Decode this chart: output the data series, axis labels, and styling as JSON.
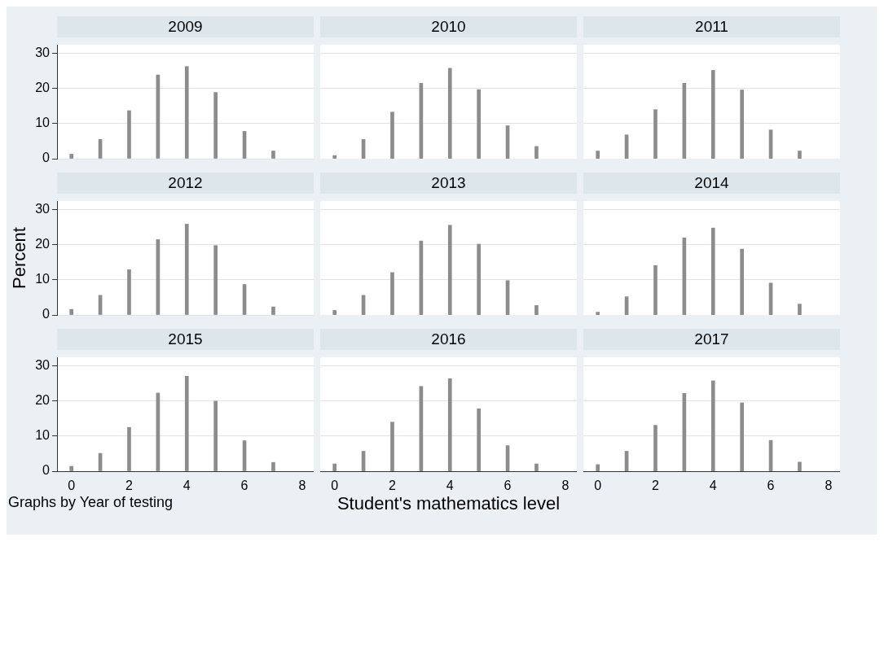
{
  "chart_data": [
    {
      "type": "bar",
      "title": "2009",
      "x": [
        0,
        1,
        2,
        3,
        4,
        5,
        6,
        7
      ],
      "values": [
        1.3,
        5.5,
        13.7,
        23.9,
        26.3,
        18.9,
        7.8,
        2.2
      ],
      "color": "#8c8c8c",
      "xlim": [
        -0.5,
        8.4
      ],
      "ylim": [
        0,
        32.5
      ],
      "yticks": [
        0,
        10,
        20,
        30
      ],
      "grid": "y",
      "tick_labels": "y"
    },
    {
      "type": "bar",
      "title": "2010",
      "x": [
        0,
        1,
        2,
        3,
        4,
        5,
        6,
        7
      ],
      "values": [
        0.9,
        5.5,
        13.3,
        21.5,
        25.8,
        19.7,
        9.4,
        3.5
      ],
      "color": "#8c8c8c",
      "xlim": [
        -0.5,
        8.4
      ],
      "ylim": [
        0,
        32.5
      ],
      "grid": "y",
      "tick_labels": false
    },
    {
      "type": "bar",
      "title": "2011",
      "x": [
        0,
        1,
        2,
        3,
        4,
        5,
        6,
        7
      ],
      "values": [
        2.2,
        6.8,
        14,
        21.5,
        25.2,
        19.6,
        8.2,
        2.2
      ],
      "color": "#8c8c8c",
      "xlim": [
        -0.5,
        8.4
      ],
      "ylim": [
        0,
        32.5
      ],
      "grid": "y",
      "tick_labels": false
    },
    {
      "type": "bar",
      "title": "2012",
      "ylabel": "Percent",
      "x": [
        0,
        1,
        2,
        3,
        4,
        5,
        6,
        7
      ],
      "values": [
        1.6,
        5.6,
        12.9,
        21.5,
        25.9,
        19.8,
        8.7,
        2.3
      ],
      "color": "#8c8c8c",
      "xlim": [
        -0.5,
        8.4
      ],
      "ylim": [
        0,
        32.5
      ],
      "yticks": [
        0,
        10,
        20,
        30
      ],
      "grid": "y",
      "tick_labels": "y"
    },
    {
      "type": "bar",
      "title": "2013",
      "x": [
        0,
        1,
        2,
        3,
        4,
        5,
        6,
        7
      ],
      "values": [
        1.3,
        5.6,
        12.1,
        21.1,
        25.6,
        20.2,
        9.8,
        2.7
      ],
      "color": "#8c8c8c",
      "xlim": [
        -0.5,
        8.4
      ],
      "ylim": [
        0,
        32.5
      ],
      "grid": "y",
      "tick_labels": false
    },
    {
      "type": "bar",
      "title": "2014",
      "x": [
        0,
        1,
        2,
        3,
        4,
        5,
        6,
        7
      ],
      "values": [
        0.8,
        5.2,
        14.1,
        22,
        24.8,
        18.8,
        9.1,
        3.1
      ],
      "color": "#8c8c8c",
      "xlim": [
        -0.5,
        8.4
      ],
      "ylim": [
        0,
        32.5
      ],
      "grid": "y",
      "tick_labels": false
    },
    {
      "type": "bar",
      "title": "2015",
      "annotations": [
        "Graphs by Year of testing"
      ],
      "x": [
        0,
        1,
        2,
        3,
        4,
        5,
        6,
        7
      ],
      "values": [
        1.4,
        5.1,
        12.5,
        22.3,
        27.1,
        20,
        8.7,
        2.5
      ],
      "color": "#8c8c8c",
      "xlim": [
        -0.5,
        8.4
      ],
      "xticks": [
        0,
        2,
        4,
        6,
        8
      ],
      "ylim": [
        0,
        32.5
      ],
      "yticks": [
        0,
        10,
        20,
        30
      ],
      "grid": "y"
    },
    {
      "type": "bar",
      "title": "2016",
      "xlabel": "Student's mathematics level",
      "x": [
        0,
        1,
        2,
        3,
        4,
        5,
        6,
        7
      ],
      "values": [
        2.1,
        5.7,
        14,
        24.2,
        26.4,
        17.8,
        7.3,
        2.1
      ],
      "color": "#8c8c8c",
      "xlim": [
        -0.5,
        8.4
      ],
      "xticks": [
        0,
        2,
        4,
        6,
        8
      ],
      "ylim": [
        0,
        32.5
      ],
      "grid": "y",
      "tick_labels": "x"
    },
    {
      "type": "bar",
      "title": "2017",
      "x": [
        0,
        1,
        2,
        3,
        4,
        5,
        6,
        7
      ],
      "values": [
        1.9,
        5.7,
        13.1,
        22.2,
        25.8,
        19.5,
        8.8,
        2.6
      ],
      "color": "#8c8c8c",
      "xlim": [
        -0.5,
        8.4
      ],
      "xticks": [
        0,
        2,
        4,
        6,
        8
      ],
      "ylim": [
        0,
        32.5
      ],
      "grid": "y",
      "tick_labels": "x"
    }
  ]
}
